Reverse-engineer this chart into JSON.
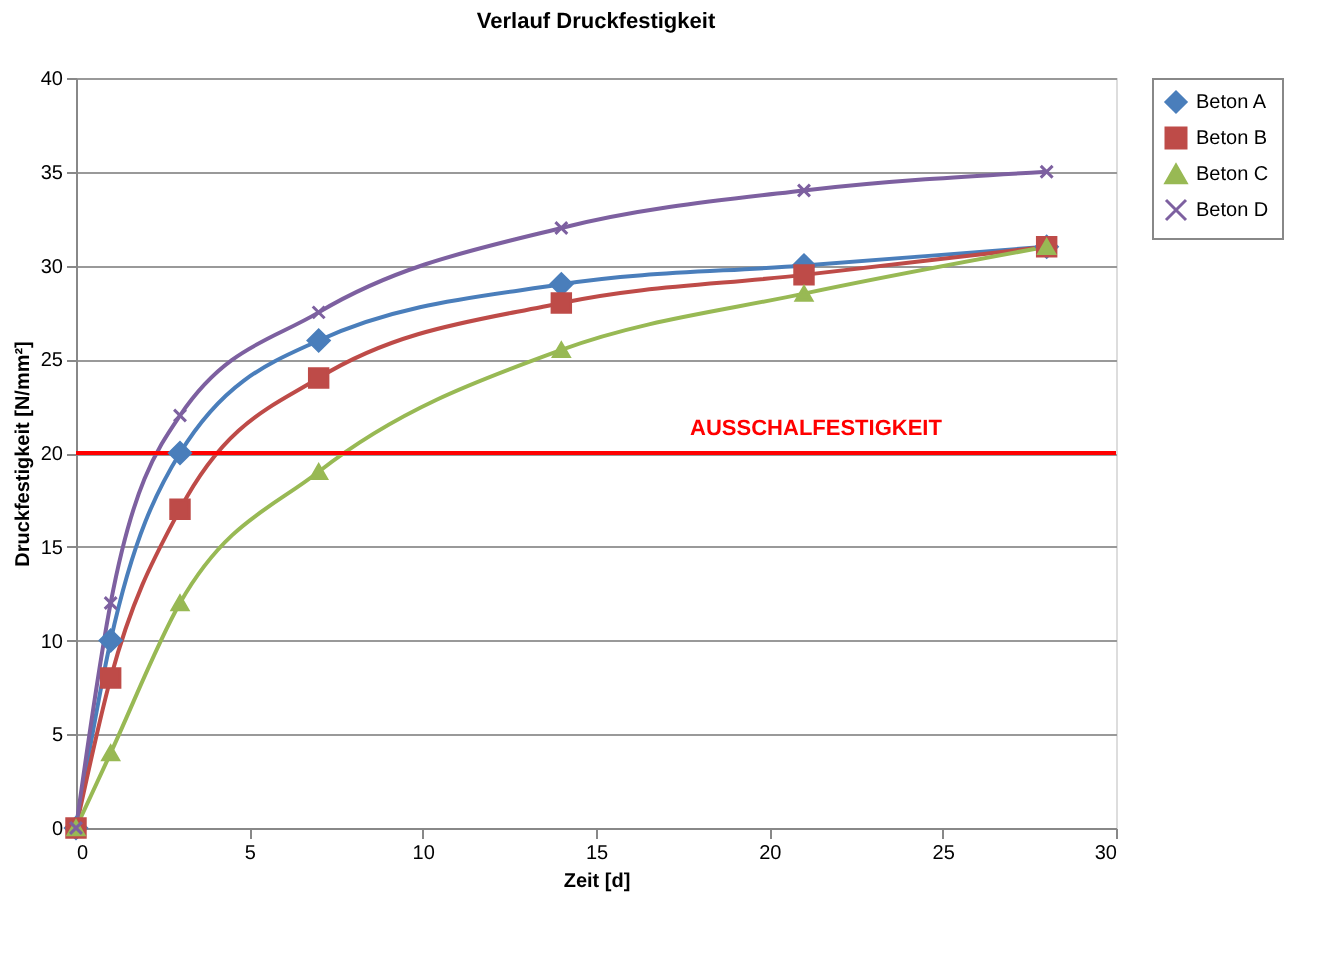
{
  "chart_data": {
    "type": "line",
    "title": "Verlauf Druckfestigkeit",
    "xlabel": "Zeit [d]",
    "ylabel": "Druckfestigkeit [N/mm²]",
    "x": [
      0,
      1,
      3,
      7,
      14,
      21,
      28
    ],
    "series": [
      {
        "name": "Beton A",
        "color": "#4a7ebb",
        "marker": "diamond",
        "values": [
          0,
          10,
          20,
          26,
          29,
          30,
          31
        ]
      },
      {
        "name": "Beton B",
        "color": "#be4b48",
        "marker": "square",
        "values": [
          0,
          8,
          17,
          24,
          28,
          29.5,
          31
        ]
      },
      {
        "name": "Beton C",
        "color": "#98b954",
        "marker": "triangle",
        "values": [
          0,
          4,
          12,
          19,
          25.5,
          28.5,
          31
        ]
      },
      {
        "name": "Beton D",
        "color": "#7d60a0",
        "marker": "cross",
        "values": [
          0,
          12,
          22,
          27.5,
          32,
          34,
          35
        ]
      }
    ],
    "xlim": [
      0,
      30
    ],
    "xticks": [
      0,
      5,
      10,
      15,
      20,
      25,
      30
    ],
    "ylim": [
      0,
      40
    ],
    "yticks": [
      0,
      5,
      10,
      15,
      20,
      25,
      30,
      35,
      40
    ],
    "ref_lines": [
      {
        "axis": "y",
        "value": 20,
        "label": "AUSSCHALFESTIGKEIT",
        "color": "#ff0000"
      }
    ],
    "grid": "y",
    "legend": "right",
    "line_style": "solid"
  }
}
